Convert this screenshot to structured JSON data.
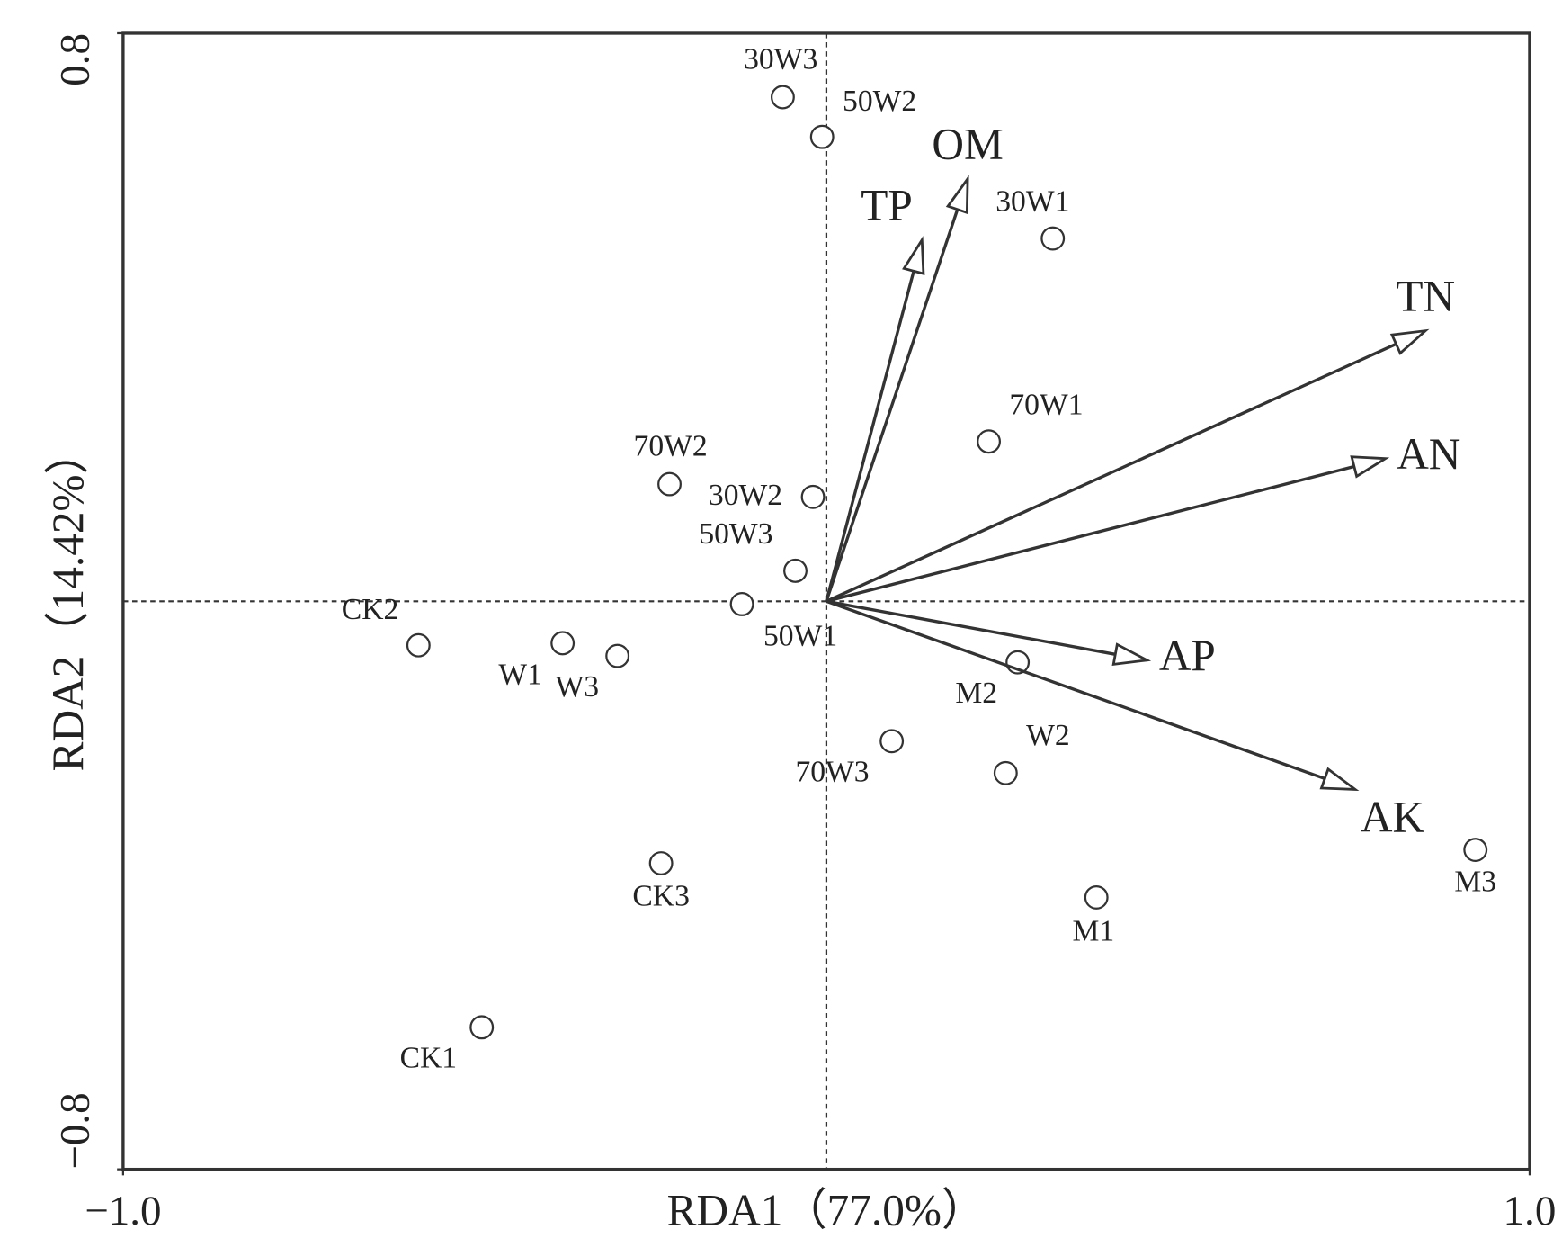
{
  "chart_data": {
    "type": "biplot",
    "xlabel": "RDA1（77.0%）",
    "ylabel": "RDA2（14.42%）",
    "xlim": [
      -1.0,
      1.0
    ],
    "ylim": [
      -0.8,
      0.8
    ],
    "xticks": [
      {
        "value": -1.0,
        "label": "−1.0"
      },
      {
        "value": 1.0,
        "label": "1.0"
      }
    ],
    "yticks": [
      {
        "value": -0.8,
        "label": "−0.8"
      },
      {
        "value": 0.8,
        "label": "0.8"
      }
    ],
    "sites": {
      "labels": [
        "30W3",
        "50W2",
        "30W1",
        "70W1",
        "70W2",
        "30W2",
        "50W3",
        "50W1",
        "CK2",
        "W1",
        "W3",
        "M2",
        "70W3",
        "W2",
        "CK3",
        "M1",
        "M3",
        "CK1"
      ],
      "x": [
        -0.062,
        -0.006,
        0.322,
        0.231,
        -0.223,
        -0.019,
        -0.044,
        -0.12,
        -0.58,
        -0.375,
        -0.297,
        0.272,
        0.093,
        0.255,
        -0.235,
        0.384,
        0.923,
        -0.49
      ],
      "y": [
        0.71,
        0.654,
        0.511,
        0.225,
        0.165,
        0.147,
        0.043,
        -0.004,
        -0.062,
        -0.059,
        -0.077,
        -0.086,
        -0.197,
        -0.242,
        -0.369,
        -0.417,
        -0.35,
        -0.6
      ]
    },
    "vectors": {
      "labels": [
        "TP",
        "OM",
        "TN",
        "AN",
        "AP",
        "AK"
      ],
      "x": [
        0.136,
        0.201,
        0.852,
        0.795,
        0.456,
        0.752
      ],
      "y": [
        0.509,
        0.595,
        0.381,
        0.201,
        -0.083,
        -0.265
      ]
    }
  }
}
